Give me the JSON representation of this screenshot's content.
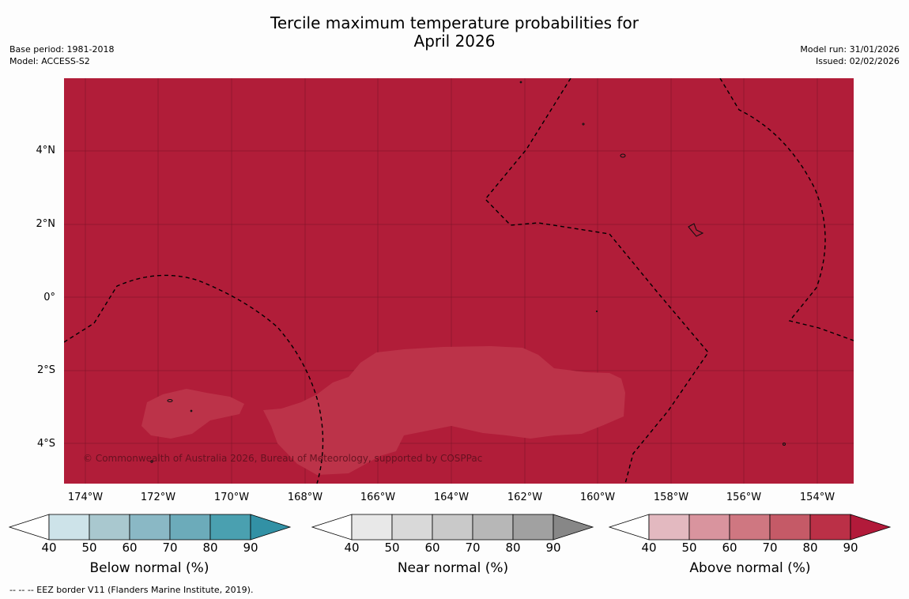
{
  "title": {
    "line1": "Tercile maximum temperature probabilities for",
    "line2": "April 2026"
  },
  "meta": {
    "base_period": "Base period: 1981-2018",
    "model": "Model: ACCESS-S2",
    "model_run": "Model run: 31/01/2026",
    "issued": "Issued: 02/02/2026"
  },
  "map": {
    "background_color": "#b11d39",
    "patch_color": "#bc3349",
    "copyright": "© Commonwealth of Australia 2026, Bureau of Meteorology, supported by COSPPac",
    "lat_labels": [
      "4°N",
      "2°N",
      "0°",
      "2°S",
      "4°S"
    ],
    "lon_labels": [
      "174°W",
      "172°W",
      "170°W",
      "168°W",
      "166°W",
      "164°W",
      "162°W",
      "160°W",
      "158°W",
      "156°W",
      "154°W"
    ]
  },
  "colorbars": [
    {
      "label": "Below normal (%)",
      "ticks": [
        "40",
        "50",
        "60",
        "70",
        "80",
        "90"
      ],
      "colors": [
        "#cde3e9",
        "#a9c8cf",
        "#8ab8c5",
        "#6cabba",
        "#4aa0b0",
        "#3291a5"
      ]
    },
    {
      "label": "Near normal (%)",
      "ticks": [
        "40",
        "50",
        "60",
        "70",
        "80",
        "90"
      ],
      "colors": [
        "#e8e8e8",
        "#d9d9d9",
        "#c9c9c9",
        "#b7b7b7",
        "#a1a1a1",
        "#878787"
      ]
    },
    {
      "label": "Above normal (%)",
      "ticks": [
        "40",
        "50",
        "60",
        "70",
        "80",
        "90"
      ],
      "colors": [
        "#e3b9c0",
        "#d9949e",
        "#cf7781",
        "#c55a67",
        "#bb3047",
        "#b21a3a"
      ]
    }
  ],
  "footnote": "--  --  -- EEZ border V11 (Flanders Marine Institute, 2019)."
}
